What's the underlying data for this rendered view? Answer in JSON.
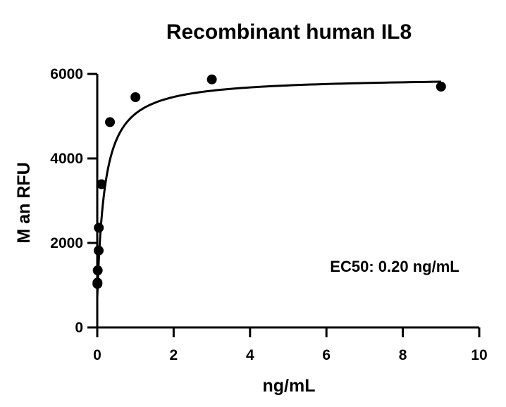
{
  "chart_data": {
    "type": "scatter",
    "title": "Recombinant human IL8",
    "xlabel": "ng/mL",
    "ylabel": "M  an RFU",
    "xlim": [
      0,
      10
    ],
    "ylim": [
      0,
      6000
    ],
    "x_ticks": [
      0,
      2,
      4,
      6,
      8,
      10
    ],
    "y_ticks": [
      0,
      2000,
      4000,
      6000
    ],
    "x_tick_labels": [
      "0",
      "2",
      "4",
      "6",
      "8",
      "10"
    ],
    "y_tick_labels": [
      "0",
      "2000",
      "4000",
      "6000"
    ],
    "grid": false,
    "legend": "none",
    "series": [
      {
        "points": [
          {
            "x": 0.004,
            "y": 1030
          },
          {
            "x": 0.006,
            "y": 1060
          },
          {
            "x": 0.012,
            "y": 1350
          },
          {
            "x": 0.037,
            "y": 1820
          },
          {
            "x": 0.041,
            "y": 2360
          },
          {
            "x": 0.111,
            "y": 3390
          },
          {
            "x": 0.333,
            "y": 4860
          },
          {
            "x": 1.0,
            "y": 5450
          },
          {
            "x": 3.0,
            "y": 5870
          },
          {
            "x": 9.0,
            "y": 5700
          }
        ]
      }
    ],
    "fit_curve": {
      "model": "four-parameter",
      "bottom": 700,
      "top": 5930,
      "ec50": 0.2,
      "hill": 1.0,
      "x_range": [
        0.001,
        9.0
      ]
    },
    "annotations": [
      {
        "text": "EC50: 0.20 ng/mL"
      }
    ],
    "colors": {
      "axis": "#000000",
      "points": "#000000",
      "curve": "#000000"
    }
  }
}
